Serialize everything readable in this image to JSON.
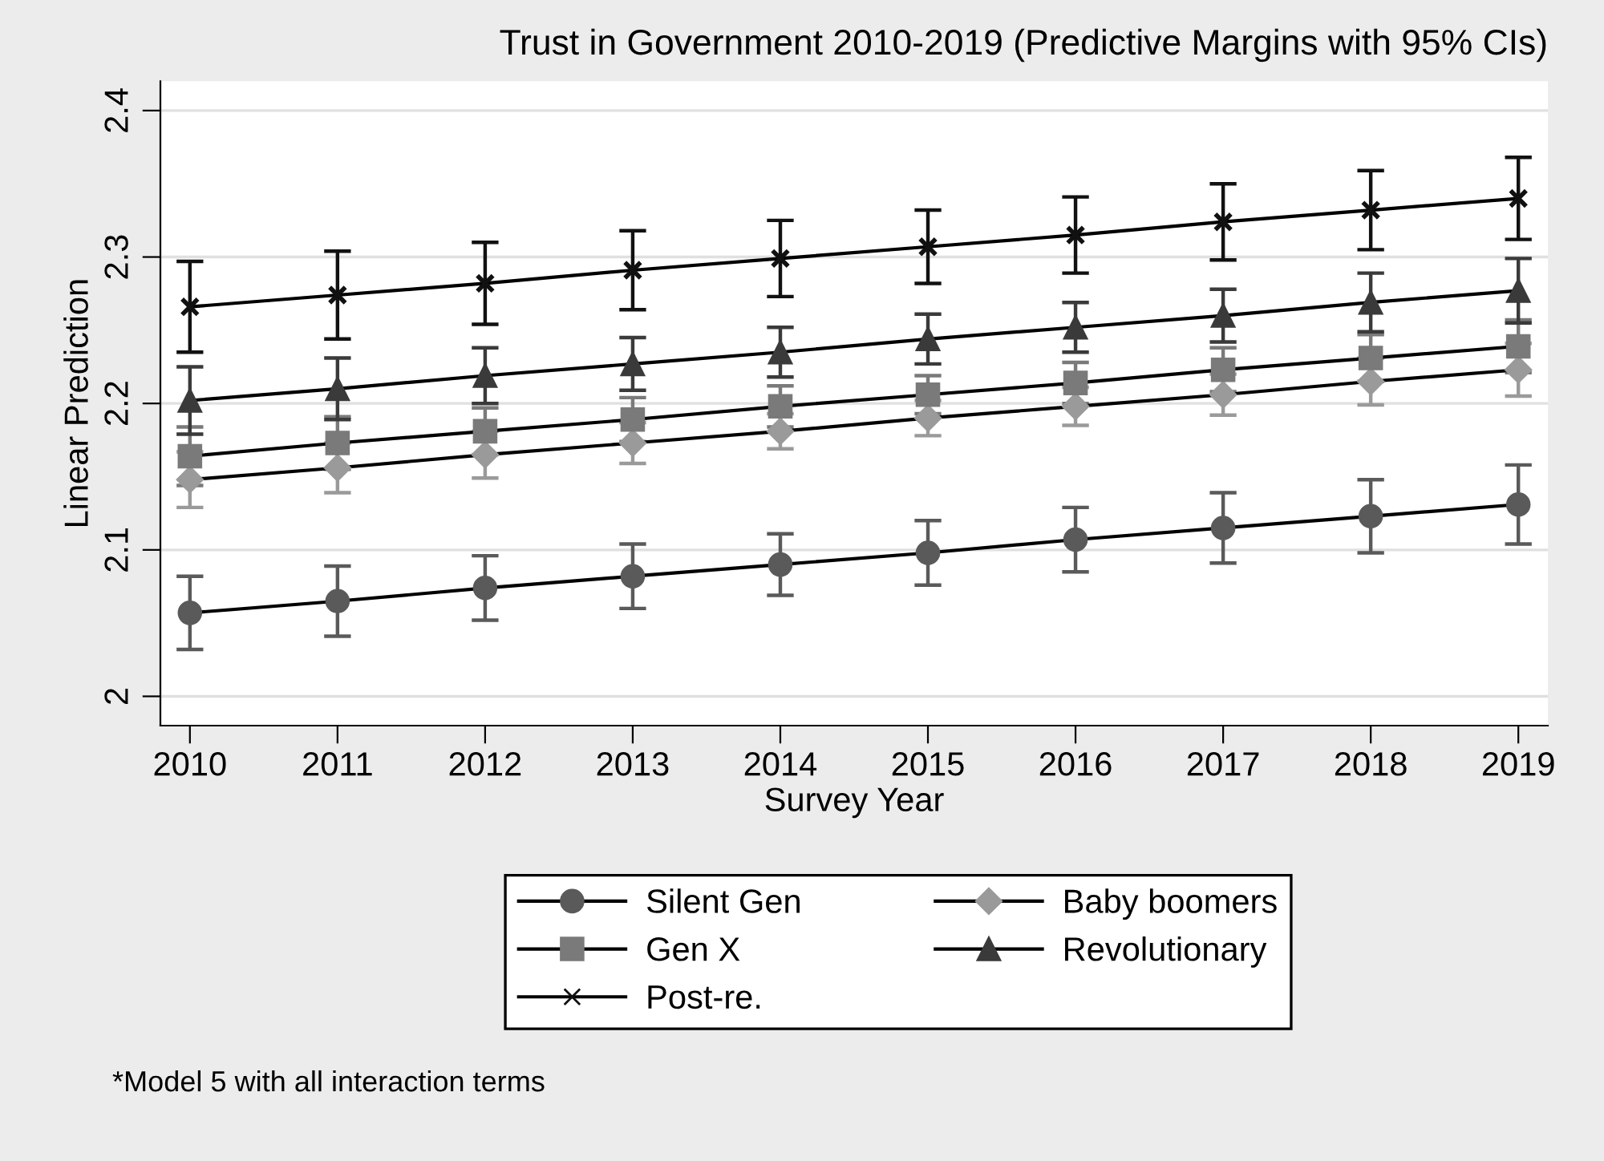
{
  "chart_data": {
    "type": "line",
    "title": "Trust in Government 2010-2019 (Predictive Margins with 95% CIs)",
    "xlabel": "Survey Year",
    "ylabel": "Linear Prediction",
    "categories": [
      "2010",
      "2011",
      "2012",
      "2013",
      "2014",
      "2015",
      "2016",
      "2017",
      "2018",
      "2019"
    ],
    "ylim": [
      1.98,
      2.42
    ],
    "yticks": [
      2,
      2.1,
      2.2,
      2.3,
      2.4
    ],
    "grid": "y",
    "legend": "bottom",
    "line_style": "solid",
    "series": [
      {
        "name": "Silent Gen",
        "color": "#5a5a5a",
        "marker": "circle",
        "values": [
          2.057,
          2.065,
          2.074,
          2.082,
          2.09,
          2.098,
          2.107,
          2.115,
          2.123,
          2.131
        ],
        "errors": [
          0.025,
          0.024,
          0.022,
          0.022,
          0.021,
          0.022,
          0.022,
          0.024,
          0.025,
          0.027
        ]
      },
      {
        "name": "Baby boomers",
        "color": "#9a9a9a",
        "marker": "diamond",
        "values": [
          2.148,
          2.156,
          2.165,
          2.173,
          2.181,
          2.19,
          2.198,
          2.206,
          2.215,
          2.223
        ],
        "errors": [
          0.019,
          0.017,
          0.016,
          0.014,
          0.012,
          0.012,
          0.013,
          0.014,
          0.016,
          0.018
        ]
      },
      {
        "name": "Gen X",
        "color": "#7a7a7a",
        "marker": "square",
        "values": [
          2.164,
          2.173,
          2.181,
          2.189,
          2.198,
          2.206,
          2.214,
          2.223,
          2.231,
          2.239
        ],
        "errors": [
          0.02,
          0.018,
          0.016,
          0.015,
          0.014,
          0.013,
          0.014,
          0.015,
          0.016,
          0.018
        ]
      },
      {
        "name": "Revolutionary",
        "color": "#3a3a3a",
        "marker": "triangle",
        "values": [
          2.202,
          2.21,
          2.219,
          2.227,
          2.235,
          2.244,
          2.252,
          2.26,
          2.269,
          2.277
        ],
        "errors": [
          0.023,
          0.021,
          0.019,
          0.018,
          0.017,
          0.017,
          0.017,
          0.018,
          0.02,
          0.022
        ]
      },
      {
        "name": "Post-re.",
        "color": "#111111",
        "marker": "cross",
        "values": [
          2.266,
          2.274,
          2.282,
          2.291,
          2.299,
          2.307,
          2.315,
          2.324,
          2.332,
          2.34
        ],
        "errors": [
          0.031,
          0.03,
          0.028,
          0.027,
          0.026,
          0.025,
          0.026,
          0.026,
          0.027,
          0.028
        ]
      }
    ],
    "annotations": [
      "*Model 5 with all interaction terms"
    ]
  }
}
